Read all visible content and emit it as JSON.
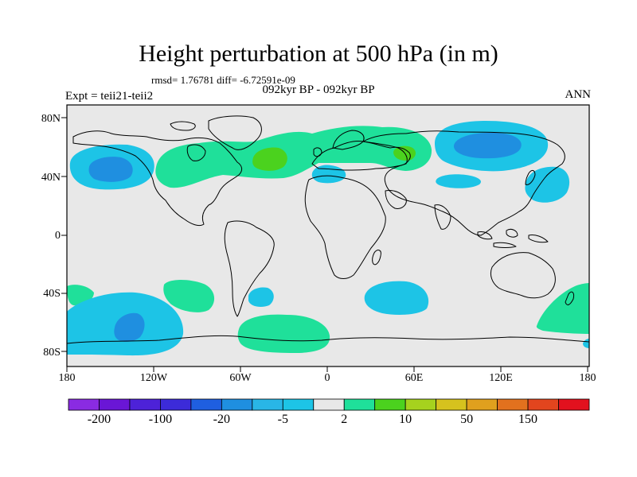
{
  "title": "Height perturbation at 500 hPa (in m)",
  "stats_text": "rmsd= 1.76781 diff= -6.72591e-09",
  "period_text": "092kyr BP - 092kyr BP",
  "expt_text": "Expt = teii21-teii2",
  "season_text": "ANN",
  "lat_labels": [
    "80N",
    "40N",
    "0",
    "40S",
    "80S"
  ],
  "lon_labels": [
    "180",
    "120W",
    "60W",
    "0",
    "60E",
    "120E",
    "180"
  ],
  "colorbar": {
    "colors": [
      "#8a2be2",
      "#6a16d6",
      "#4d22d8",
      "#3c2bd9",
      "#1f5fe0",
      "#1f8fe0",
      "#29b6e6",
      "#1dc4e6",
      "#e8e8e8",
      "#1fe09a",
      "#4bd21e",
      "#a6d21e",
      "#d6c21e",
      "#e0a01e",
      "#e2711e",
      "#e2451e",
      "#e2111e"
    ],
    "labels": [
      "-200",
      "-100",
      "-20",
      "-5",
      "2",
      "10",
      "50",
      "150"
    ]
  },
  "colors": {
    "background": "#e8e8e8",
    "frame": "#000000",
    "positive_light": "#1fe09a",
    "positive_mid": "#4bd21e",
    "negative_light": "#1dc4e6",
    "negative_mid": "#1f8fe0"
  }
}
